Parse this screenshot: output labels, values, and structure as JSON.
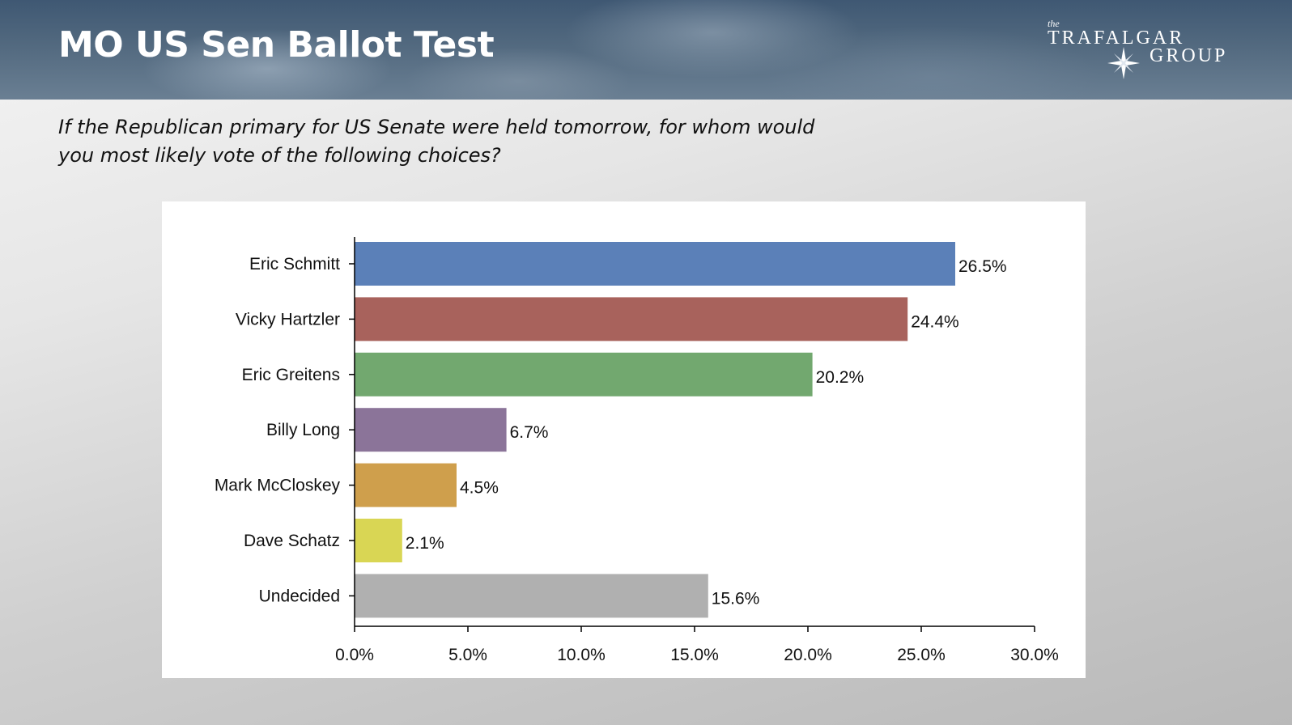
{
  "header": {
    "title": "MO US Sen Ballot Test",
    "logo": {
      "the": "the",
      "line1": "TRAFALGAR",
      "line2": "GROUP"
    }
  },
  "question": {
    "line1": "If the Republican primary for US Senate were held tomorrow, for whom would",
    "line2": "you most likely vote of the following choices?"
  },
  "chart_data": {
    "type": "bar",
    "orientation": "horizontal",
    "categories": [
      "Eric Schmitt",
      "Vicky Hartzler",
      "Eric Greitens",
      "Billy Long",
      "Mark McCloskey",
      "Dave Schatz",
      "Undecided"
    ],
    "values": [
      26.5,
      24.4,
      20.2,
      6.7,
      4.5,
      2.1,
      15.6
    ],
    "value_labels": [
      "26.5%",
      "24.4%",
      "20.2%",
      "6.7%",
      "4.5%",
      "2.1%",
      "15.6%"
    ],
    "colors": [
      "#5b80b8",
      "#a8625c",
      "#72a86f",
      "#8b7499",
      "#cf9f4c",
      "#d9d654",
      "#b0b0b0"
    ],
    "xlim": [
      0,
      30
    ],
    "xticks": [
      0,
      5,
      10,
      15,
      20,
      25,
      30
    ],
    "xtick_labels": [
      "0.0%",
      "5.0%",
      "10.0%",
      "15.0%",
      "20.0%",
      "25.0%",
      "30.0%"
    ],
    "grid": false,
    "legend": "none"
  }
}
